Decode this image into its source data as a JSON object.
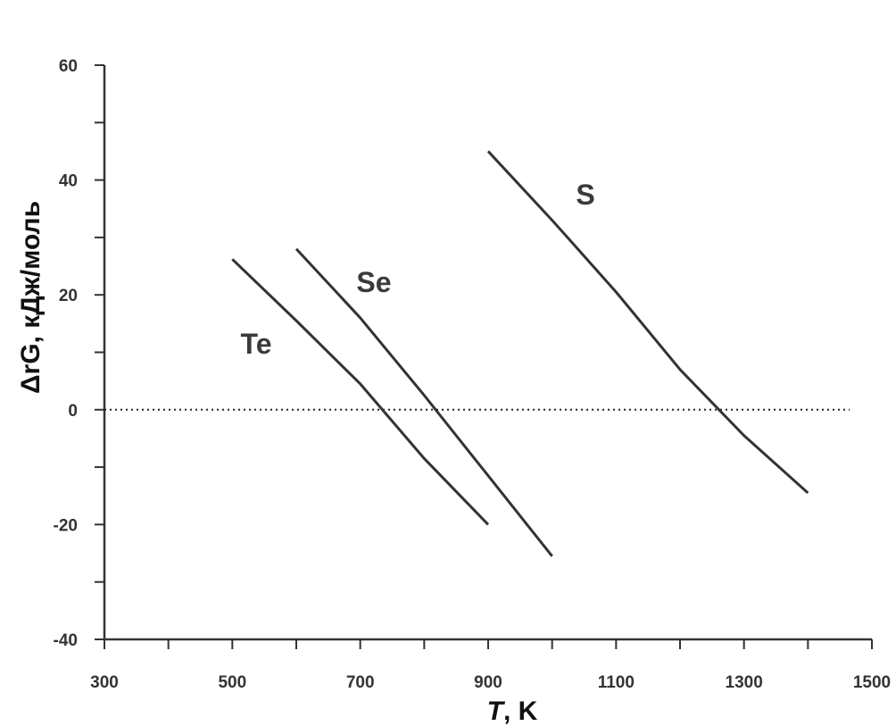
{
  "chart_data": {
    "type": "line",
    "xlabel_italic": "T",
    "xlabel_rest": ", K",
    "ylabel": "ΔrG, кДж/моль",
    "xlim": [
      300,
      1500
    ],
    "ylim": [
      -40,
      60
    ],
    "x_ticks": [
      300,
      500,
      700,
      900,
      1100,
      1300,
      1500
    ],
    "y_ticks": [
      -40,
      -20,
      0,
      20,
      40,
      60
    ],
    "x_minor_step": 100,
    "y_minor_step": 10,
    "grid": false,
    "reference_line": {
      "y": 0,
      "style": "dotted"
    },
    "series": [
      {
        "name": "Te",
        "x": [
          500,
          600,
          700,
          800,
          900
        ],
        "y": [
          26.2,
          15.5,
          4.5,
          -8.5,
          -20.0
        ]
      },
      {
        "name": "Se",
        "x": [
          600,
          700,
          800,
          900,
          1000
        ],
        "y": [
          28.0,
          16.0,
          2.5,
          -11.5,
          -25.5
        ]
      },
      {
        "name": "S",
        "x": [
          900,
          1000,
          1100,
          1200,
          1300,
          1400
        ],
        "y": [
          45.0,
          33.0,
          20.5,
          7.0,
          -4.5,
          -14.5
        ]
      }
    ],
    "line_color": "#333333"
  }
}
